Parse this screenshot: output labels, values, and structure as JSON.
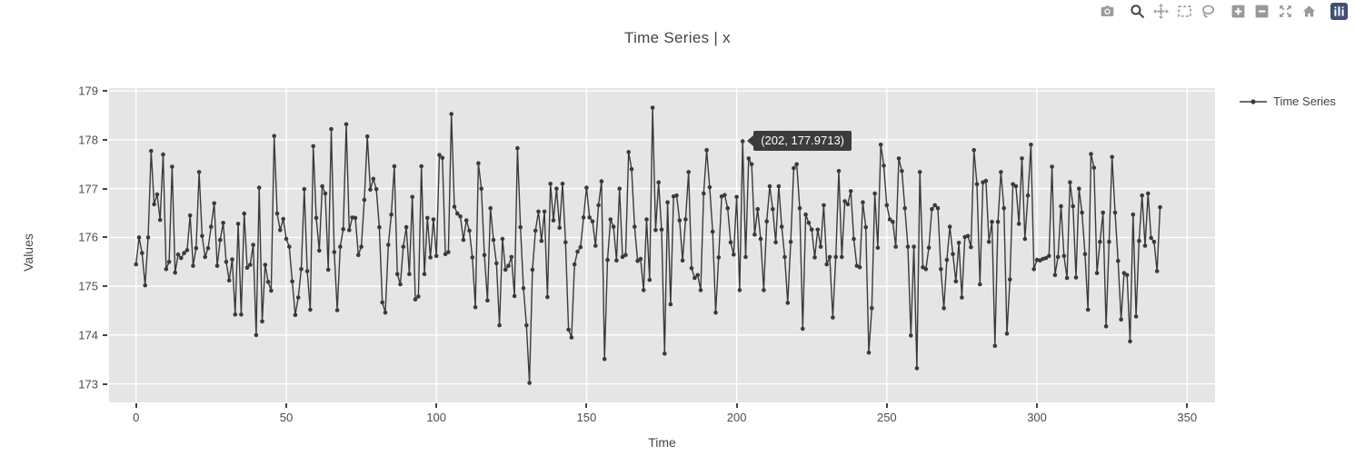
{
  "title": "Time Series | x",
  "legend": {
    "label": "Time Series"
  },
  "tooltip": {
    "text": "(202, 177.9713)",
    "point_x": 202,
    "point_y": 177.9713
  },
  "modebar": {
    "icons": [
      "camera",
      "zoom",
      "pan",
      "box-select",
      "lasso-select",
      "zoom-in",
      "zoom-out",
      "autoscale",
      "reset-home",
      "plotly-logo"
    ]
  },
  "colors": {
    "line": "#3a3a3a",
    "plot_bg": "#E5E5E5",
    "grid": "#ffffff",
    "text": "#444444",
    "tooltip_bg": "#3c3c3c",
    "modebar_icon": "#999999",
    "modebar_active": "#4a4a4a",
    "logo_bg": "#3F4F75"
  },
  "chart_data": {
    "type": "line",
    "title": "Time Series | x",
    "xlabel": "Time",
    "ylabel": "Values",
    "legend_position": "right",
    "grid": true,
    "x_ticks": [
      0,
      50,
      100,
      150,
      200,
      250,
      300,
      350
    ],
    "y_ticks": [
      173,
      174,
      175,
      176,
      177,
      178,
      179
    ],
    "xlim": [
      -9,
      359.3
    ],
    "ylim": [
      172.62,
      179.06
    ],
    "x_start": 0,
    "x_step": 1,
    "hover_point": {
      "x": 202,
      "y": 177.9713
    },
    "series": [
      {
        "name": "Time Series",
        "values": [
          175.45,
          176.0,
          175.68,
          175.02,
          176.0,
          177.77,
          176.68,
          176.88,
          176.36,
          177.7,
          175.35,
          175.5,
          177.45,
          175.28,
          175.65,
          175.58,
          175.68,
          175.74,
          176.45,
          175.42,
          175.78,
          177.34,
          176.03,
          175.6,
          175.78,
          176.22,
          176.7,
          175.42,
          175.95,
          176.3,
          175.5,
          175.12,
          175.55,
          174.42,
          176.28,
          174.42,
          176.49,
          175.38,
          175.44,
          175.85,
          174.0,
          177.02,
          174.28,
          175.44,
          175.09,
          174.91,
          178.08,
          176.49,
          176.15,
          176.38,
          175.97,
          175.81,
          175.1,
          174.41,
          174.77,
          175.35,
          176.99,
          175.31,
          174.52,
          177.87,
          176.4,
          175.73,
          177.05,
          176.9,
          175.34,
          178.22,
          175.7,
          174.51,
          175.81,
          176.17,
          178.32,
          176.15,
          176.41,
          176.4,
          175.64,
          175.81,
          176.77,
          178.07,
          176.98,
          177.2,
          176.99,
          176.21,
          174.67,
          174.46,
          175.85,
          176.47,
          177.46,
          175.25,
          175.04,
          175.81,
          176.21,
          175.25,
          176.83,
          174.73,
          174.79,
          177.46,
          175.25,
          176.4,
          175.59,
          176.37,
          175.62,
          177.69,
          177.63,
          175.66,
          175.7,
          178.53,
          176.63,
          176.49,
          176.43,
          175.95,
          176.35,
          176.14,
          175.59,
          174.57,
          177.52,
          177.0,
          175.64,
          174.71,
          176.6,
          175.95,
          175.47,
          174.2,
          175.97,
          175.34,
          175.42,
          175.6,
          174.8,
          177.83,
          176.21,
          174.96,
          174.2,
          173.02,
          175.34,
          176.14,
          176.53,
          175.93,
          176.53,
          174.78,
          177.1,
          176.35,
          177.0,
          176.2,
          177.1,
          175.9,
          174.11,
          173.95,
          175.45,
          175.71,
          175.8,
          176.41,
          177.02,
          176.41,
          176.33,
          175.83,
          176.66,
          177.15,
          173.51,
          175.54,
          176.37,
          176.22,
          175.53,
          177.0,
          175.6,
          175.64,
          177.75,
          177.4,
          176.22,
          175.52,
          175.56,
          174.92,
          176.37,
          175.13,
          178.66,
          176.15,
          177.13,
          176.16,
          173.62,
          176.72,
          174.63,
          176.84,
          176.86,
          176.35,
          175.53,
          176.37,
          177.34,
          175.37,
          175.17,
          175.23,
          174.92,
          176.9,
          177.79,
          177.03,
          176.12,
          174.46,
          175.59,
          176.84,
          176.87,
          176.6,
          175.9,
          175.65,
          176.83,
          174.92,
          177.9713,
          175.6,
          177.62,
          177.5,
          176.06,
          176.58,
          175.97,
          174.92,
          176.33,
          177.05,
          176.58,
          175.9,
          177.05,
          176.22,
          175.6,
          174.66,
          175.91,
          177.42,
          177.5,
          176.6,
          174.13,
          176.47,
          176.3,
          176.16,
          175.59,
          176.16,
          175.81,
          176.66,
          175.45,
          175.6,
          174.36,
          175.6,
          177.36,
          175.6,
          176.74,
          176.68,
          176.95,
          175.97,
          175.42,
          175.39,
          176.72,
          176.21,
          173.64,
          174.55,
          176.9,
          175.79,
          177.9,
          177.47,
          176.66,
          176.37,
          176.32,
          175.81,
          177.62,
          177.36,
          176.6,
          175.81,
          173.99,
          175.81,
          173.32,
          177.34,
          175.39,
          175.35,
          175.79,
          176.58,
          176.66,
          176.6,
          175.35,
          174.55,
          175.54,
          176.22,
          175.66,
          175.1,
          175.89,
          174.77,
          176.01,
          176.03,
          175.8,
          177.79,
          177.09,
          175.04,
          177.13,
          177.16,
          175.91,
          176.32,
          173.78,
          176.32,
          177.34,
          176.6,
          174.03,
          175.14,
          177.09,
          177.05,
          176.28,
          177.62,
          175.97,
          176.86,
          177.9,
          175.35,
          175.54,
          175.53,
          175.56,
          175.58,
          175.62,
          177.45,
          175.23,
          175.6,
          176.64,
          175.62,
          175.17,
          177.13,
          176.64,
          175.18,
          177.0,
          176.51,
          175.66,
          174.52,
          177.71,
          177.43,
          175.27,
          175.91,
          176.51,
          174.18,
          175.91,
          177.65,
          176.51,
          175.52,
          174.32,
          175.27,
          175.23,
          173.87,
          176.47,
          174.38,
          175.93,
          176.86,
          175.83,
          176.9,
          175.99,
          175.91,
          175.31,
          176.62
        ]
      }
    ]
  }
}
